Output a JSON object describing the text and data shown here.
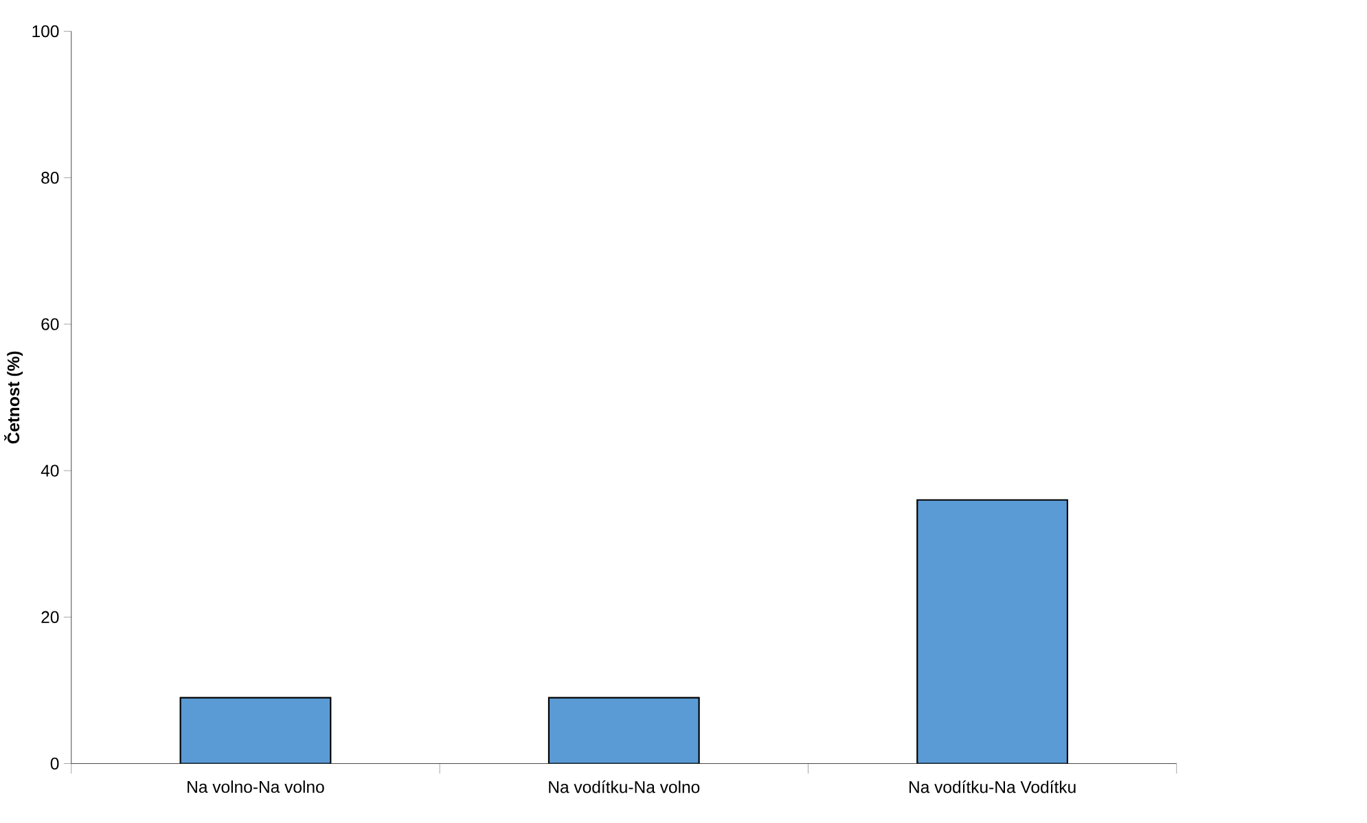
{
  "chart_data": {
    "type": "bar",
    "ylabel": "Četnost (%)",
    "categories": [
      "Na volno-Na volno",
      "Na vodítku-Na volno",
      "Na vodítku-Na Vodítku"
    ],
    "values": [
      9,
      9,
      36
    ],
    "color": "#5b9bd5",
    "ylim": [
      0,
      100
    ],
    "yticks": [
      0,
      20,
      40,
      60,
      80,
      100
    ],
    "grid": false
  }
}
